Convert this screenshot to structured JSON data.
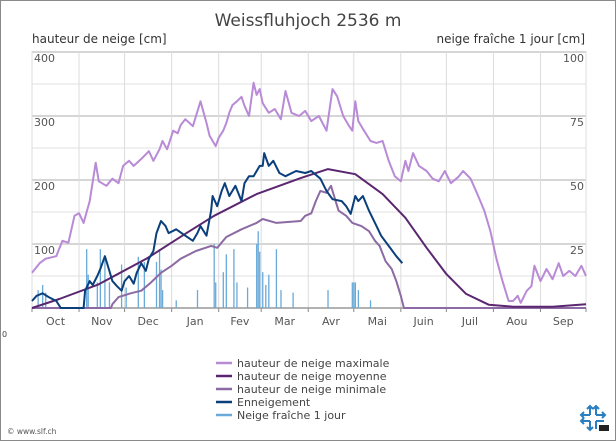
{
  "chart_data": {
    "type": "line",
    "title": "Weissfluhjoch 2536 m",
    "ylabel": "hauteur de neige [cm]",
    "y2label": "neige fraîche 1 jour [cm]",
    "xlabel": "",
    "x_unit": "day since 1 Oct",
    "xlim": [
      0,
      365
    ],
    "ylim": [
      0,
      400
    ],
    "y2lim": [
      0,
      100
    ],
    "grid": true,
    "legend_placement": "bottom-center",
    "yticks": [
      "100",
      "200",
      "300",
      "400"
    ],
    "y2ticks": [
      "25",
      "50",
      "75",
      "100"
    ],
    "months": [
      "Oct",
      "Nov",
      "Dec",
      "Jan",
      "Fev",
      "Mar",
      "Avr",
      "Mai",
      "Juin",
      "Juil",
      "Aou",
      "Sep"
    ],
    "stray_label": "0",
    "series": [
      {
        "name": "hauteur de neige maximale",
        "color": "#b98ad6",
        "kind": "line",
        "points": [
          [
            0,
            55
          ],
          [
            5,
            70
          ],
          [
            9,
            77
          ],
          [
            16,
            81
          ],
          [
            20,
            105
          ],
          [
            24,
            102
          ],
          [
            28,
            144
          ],
          [
            31,
            148
          ],
          [
            34,
            133
          ],
          [
            38,
            167
          ],
          [
            42,
            227
          ],
          [
            44,
            198
          ],
          [
            49,
            191
          ],
          [
            53,
            202
          ],
          [
            57,
            195
          ],
          [
            60,
            222
          ],
          [
            64,
            230
          ],
          [
            67,
            222
          ],
          [
            72,
            233
          ],
          [
            77,
            245
          ],
          [
            80,
            230
          ],
          [
            84,
            248
          ],
          [
            86,
            261
          ],
          [
            89,
            248
          ],
          [
            93,
            277
          ],
          [
            96,
            273
          ],
          [
            98,
            286
          ],
          [
            101,
            295
          ],
          [
            106,
            284
          ],
          [
            111,
            323
          ],
          [
            115,
            289
          ],
          [
            117,
            269
          ],
          [
            121,
            253
          ],
          [
            123,
            266
          ],
          [
            126,
            277
          ],
          [
            128,
            289
          ],
          [
            130,
            305
          ],
          [
            132,
            317
          ],
          [
            135,
            323
          ],
          [
            138,
            330
          ],
          [
            140,
            316
          ],
          [
            143,
            300
          ],
          [
            146,
            352
          ],
          [
            148,
            333
          ],
          [
            150,
            342
          ],
          [
            152,
            320
          ],
          [
            156,
            305
          ],
          [
            160,
            311
          ],
          [
            164,
            295
          ],
          [
            167,
            339
          ],
          [
            171,
            305
          ],
          [
            176,
            300
          ],
          [
            180,
            308
          ],
          [
            184,
            292
          ],
          [
            189,
            300
          ],
          [
            194,
            277
          ],
          [
            198,
            342
          ],
          [
            201,
            331
          ],
          [
            205,
            300
          ],
          [
            209,
            284
          ],
          [
            211,
            277
          ],
          [
            213,
            323
          ],
          [
            215,
            292
          ],
          [
            218,
            280
          ],
          [
            223,
            261
          ],
          [
            227,
            258
          ],
          [
            231,
            261
          ],
          [
            235,
            230
          ],
          [
            239,
            206
          ],
          [
            243,
            198
          ],
          [
            246,
            230
          ],
          [
            248,
            214
          ],
          [
            251,
            242
          ],
          [
            255,
            222
          ],
          [
            260,
            214
          ],
          [
            264,
            202
          ],
          [
            268,
            198
          ],
          [
            272,
            214
          ],
          [
            276,
            195
          ],
          [
            281,
            205
          ],
          [
            284,
            214
          ],
          [
            289,
            202
          ],
          [
            294,
            175
          ],
          [
            298,
            152
          ],
          [
            302,
            120
          ],
          [
            306,
            77
          ],
          [
            310,
            42
          ],
          [
            314,
            11
          ],
          [
            317,
            11
          ],
          [
            320,
            19
          ],
          [
            322,
            8
          ],
          [
            326,
            27
          ],
          [
            329,
            34
          ],
          [
            331,
            66
          ],
          [
            335,
            42
          ],
          [
            339,
            61
          ],
          [
            343,
            45
          ],
          [
            347,
            70
          ],
          [
            350,
            50
          ],
          [
            354,
            58
          ],
          [
            358,
            50
          ],
          [
            362,
            66
          ],
          [
            365,
            50
          ]
        ]
      },
      {
        "name": "hauteur de neige moyenne",
        "color": "#5b2670",
        "kind": "line",
        "points": [
          [
            0,
            0
          ],
          [
            18,
            14
          ],
          [
            44,
            37
          ],
          [
            76,
            78
          ],
          [
            101,
            116
          ],
          [
            120,
            144
          ],
          [
            148,
            178
          ],
          [
            177,
            203
          ],
          [
            195,
            217
          ],
          [
            213,
            209
          ],
          [
            231,
            178
          ],
          [
            246,
            141
          ],
          [
            260,
            94
          ],
          [
            273,
            53
          ],
          [
            286,
            22
          ],
          [
            301,
            5
          ],
          [
            317,
            2
          ],
          [
            343,
            2
          ],
          [
            365,
            6
          ]
        ]
      },
      {
        "name": "hauteur de neige minimale",
        "color": "#8c6aa3",
        "kind": "line",
        "points": [
          [
            0,
            0
          ],
          [
            52,
            0
          ],
          [
            53,
            6
          ],
          [
            57,
            17
          ],
          [
            65,
            23
          ],
          [
            72,
            27
          ],
          [
            78,
            39
          ],
          [
            85,
            55
          ],
          [
            92,
            66
          ],
          [
            98,
            77
          ],
          [
            108,
            89
          ],
          [
            118,
            97
          ],
          [
            122,
            94
          ],
          [
            128,
            111
          ],
          [
            138,
            123
          ],
          [
            148,
            133
          ],
          [
            152,
            139
          ],
          [
            161,
            133
          ],
          [
            177,
            136
          ],
          [
            180,
            144
          ],
          [
            184,
            148
          ],
          [
            187,
            167
          ],
          [
            190,
            183
          ],
          [
            194,
            180
          ],
          [
            197,
            191
          ],
          [
            200,
            167
          ],
          [
            202,
            152
          ],
          [
            207,
            144
          ],
          [
            211,
            133
          ],
          [
            217,
            128
          ],
          [
            222,
            120
          ],
          [
            226,
            105
          ],
          [
            229,
            97
          ],
          [
            233,
            73
          ],
          [
            237,
            61
          ],
          [
            240,
            42
          ],
          [
            243,
            19
          ],
          [
            245,
            0
          ],
          [
            365,
            0
          ]
        ]
      },
      {
        "name": "Enneigement",
        "color": "#0b3f7c",
        "kind": "line",
        "points": [
          [
            0,
            11
          ],
          [
            3,
            19
          ],
          [
            7,
            23
          ],
          [
            11,
            17
          ],
          [
            16,
            11
          ],
          [
            19,
            0
          ],
          [
            34,
            0
          ],
          [
            35,
            27
          ],
          [
            38,
            42
          ],
          [
            40,
            36
          ],
          [
            43,
            50
          ],
          [
            45,
            61
          ],
          [
            48,
            81
          ],
          [
            51,
            58
          ],
          [
            53,
            42
          ],
          [
            56,
            34
          ],
          [
            59,
            27
          ],
          [
            61,
            42
          ],
          [
            64,
            50
          ],
          [
            67,
            38
          ],
          [
            69,
            55
          ],
          [
            72,
            70
          ],
          [
            75,
            58
          ],
          [
            77,
            77
          ],
          [
            80,
            89
          ],
          [
            82,
            117
          ],
          [
            85,
            136
          ],
          [
            88,
            128
          ],
          [
            90,
            117
          ],
          [
            95,
            123
          ],
          [
            101,
            113
          ],
          [
            106,
            105
          ],
          [
            109,
            117
          ],
          [
            111,
            128
          ],
          [
            115,
            113
          ],
          [
            118,
            152
          ],
          [
            119,
            175
          ],
          [
            122,
            159
          ],
          [
            125,
            183
          ],
          [
            127,
            195
          ],
          [
            130,
            175
          ],
          [
            134,
            191
          ],
          [
            138,
            167
          ],
          [
            140,
            195
          ],
          [
            143,
            206
          ],
          [
            146,
            206
          ],
          [
            150,
            222
          ],
          [
            152,
            222
          ],
          [
            153,
            242
          ],
          [
            156,
            222
          ],
          [
            159,
            230
          ],
          [
            163,
            211
          ],
          [
            167,
            206
          ],
          [
            174,
            214
          ],
          [
            180,
            211
          ],
          [
            184,
            214
          ],
          [
            190,
            202
          ],
          [
            194,
            183
          ],
          [
            198,
            170
          ],
          [
            204,
            167
          ],
          [
            207,
            159
          ],
          [
            210,
            147
          ],
          [
            213,
            175
          ],
          [
            215,
            167
          ],
          [
            218,
            175
          ],
          [
            222,
            152
          ],
          [
            227,
            128
          ],
          [
            230,
            113
          ],
          [
            235,
            97
          ],
          [
            240,
            81
          ],
          [
            244,
            70
          ]
        ]
      },
      {
        "name": "Neige fraîche 1 jour",
        "color": "#6aaad8",
        "kind": "bar",
        "axis": "right",
        "points": [
          [
            4,
            7
          ],
          [
            7,
            9
          ],
          [
            9,
            6
          ],
          [
            36,
            23
          ],
          [
            37,
            13
          ],
          [
            43,
            10
          ],
          [
            45,
            23
          ],
          [
            48,
            19
          ],
          [
            51,
            10
          ],
          [
            59,
            17
          ],
          [
            62,
            8
          ],
          [
            70,
            20
          ],
          [
            74,
            18
          ],
          [
            82,
            18
          ],
          [
            84,
            23
          ],
          [
            85,
            15
          ],
          [
            86,
            7
          ],
          [
            95,
            3
          ],
          [
            109,
            7
          ],
          [
            120,
            25
          ],
          [
            121,
            10
          ],
          [
            126,
            14
          ],
          [
            128,
            21
          ],
          [
            133,
            23
          ],
          [
            135,
            10
          ],
          [
            142,
            8
          ],
          [
            148,
            25
          ],
          [
            149,
            30
          ],
          [
            150,
            22
          ],
          [
            152,
            14
          ],
          [
            154,
            9
          ],
          [
            156,
            13
          ],
          [
            161,
            23
          ],
          [
            164,
            7
          ],
          [
            172,
            6
          ],
          [
            195,
            7
          ],
          [
            211,
            10
          ],
          [
            212,
            10
          ],
          [
            213,
            10
          ],
          [
            215,
            7
          ],
          [
            223,
            3
          ]
        ]
      }
    ]
  },
  "footer": {
    "copyright": "© www.slf.ch",
    "logo_text": "SLF"
  }
}
